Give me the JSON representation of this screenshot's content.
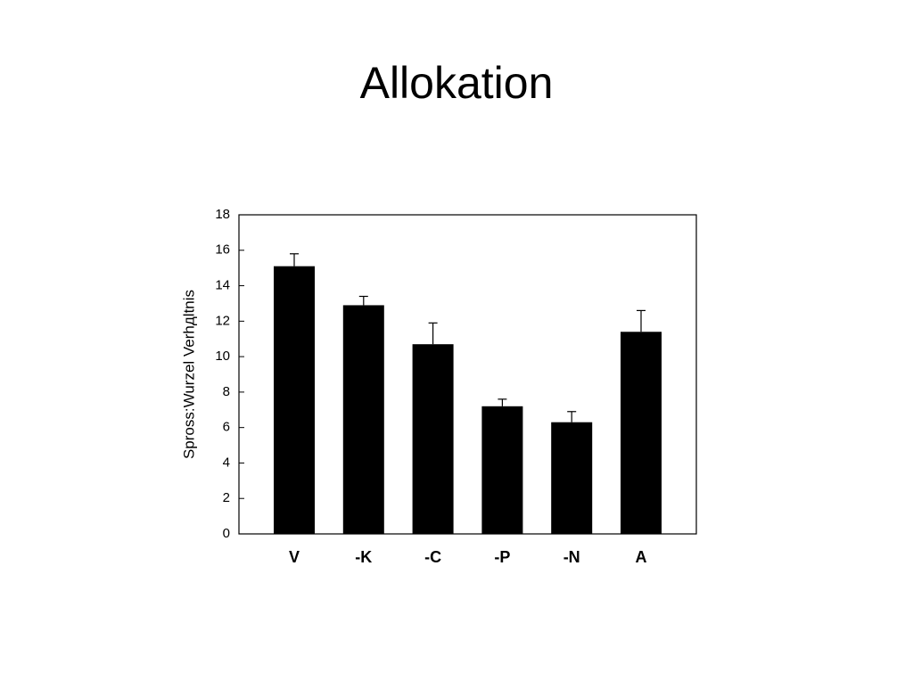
{
  "chart_data": {
    "type": "bar",
    "title": "Allokation",
    "y_label": "Spross:Wurzel Verhдltnis",
    "categories": [
      "V",
      "-K",
      "-C",
      "-P",
      "-N",
      "A"
    ],
    "values": [
      15.1,
      12.9,
      10.7,
      7.2,
      6.3,
      11.4
    ],
    "errors": [
      0.7,
      0.5,
      1.2,
      0.4,
      0.6,
      1.2
    ],
    "color": "#000000",
    "ylim": [
      0,
      18
    ],
    "yticks": [
      0,
      2,
      4,
      6,
      8,
      10,
      12,
      14,
      16,
      18
    ],
    "grid": false
  }
}
